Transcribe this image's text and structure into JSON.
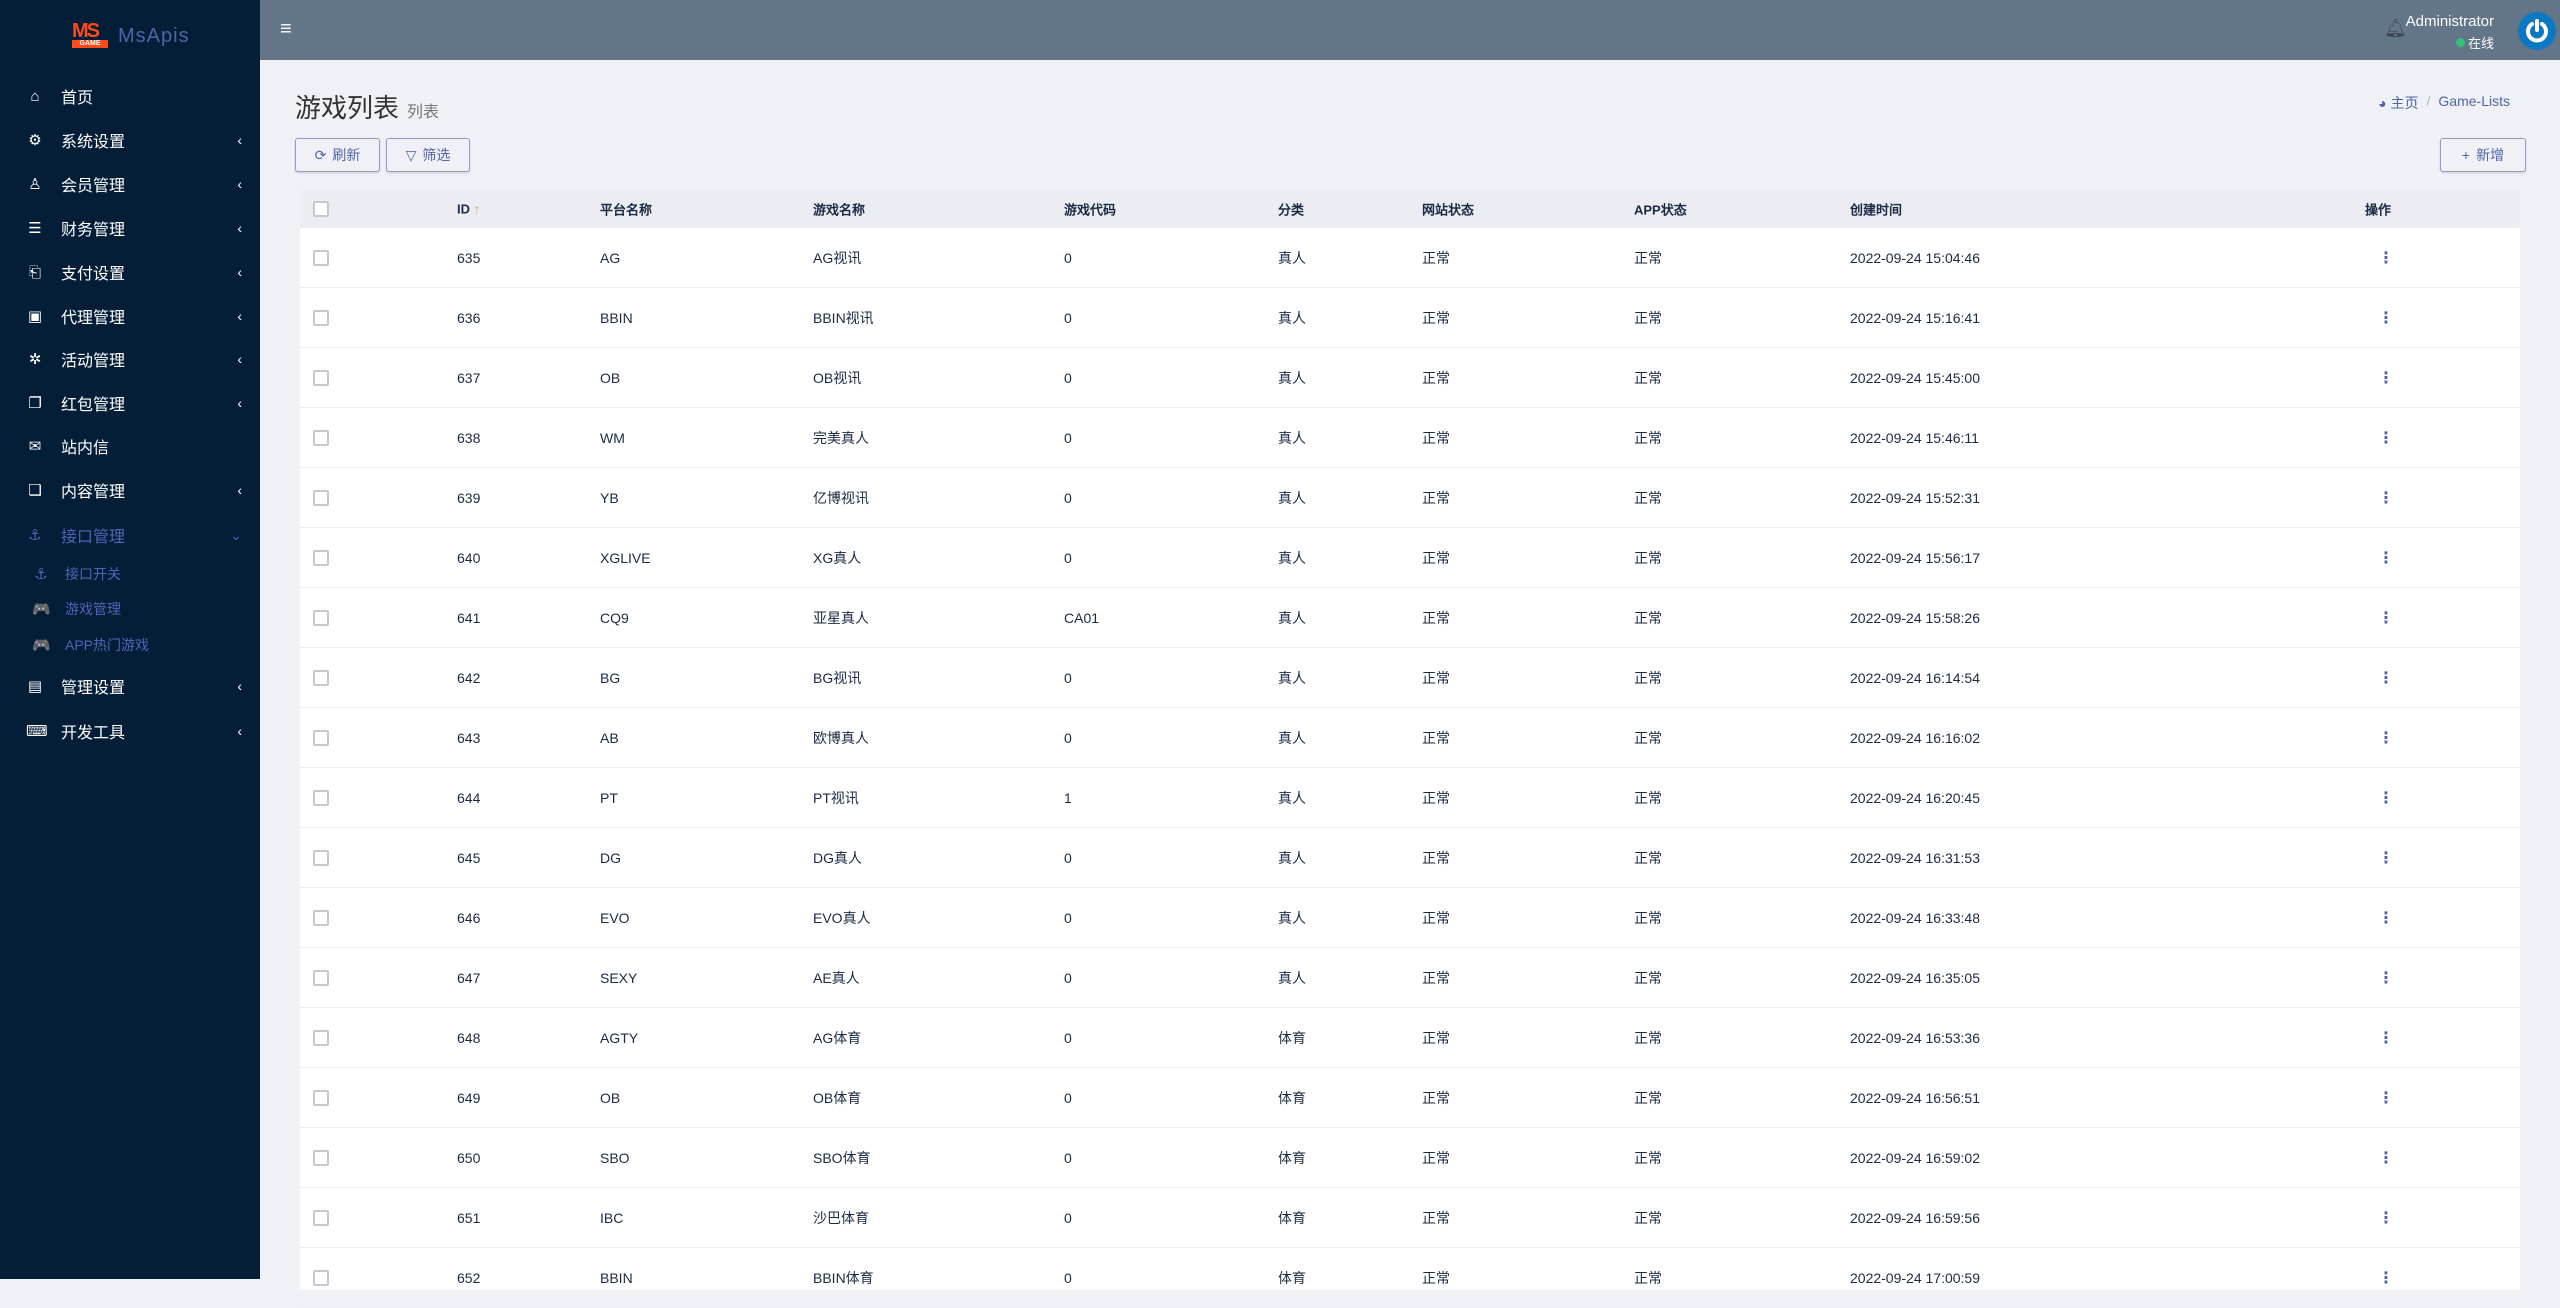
{
  "app": {
    "logo_mark": "MS",
    "logo_sub": "GAME",
    "name": "MsApis"
  },
  "sidebar": {
    "items": [
      {
        "label": "首页",
        "icon": "home-icon",
        "glyph": "⌂",
        "chevron": ""
      },
      {
        "label": "系统设置",
        "icon": "gears-icon",
        "glyph": "⚙",
        "chevron": "‹"
      },
      {
        "label": "会员管理",
        "icon": "user-icon",
        "glyph": "♙",
        "chevron": "‹"
      },
      {
        "label": "财务管理",
        "icon": "database-icon",
        "glyph": "☰",
        "chevron": "‹"
      },
      {
        "label": "支付设置",
        "icon": "bookmark-icon",
        "glyph": "⎗",
        "chevron": "‹"
      },
      {
        "label": "代理管理",
        "icon": "contact-card-icon",
        "glyph": "▣",
        "chevron": "‹"
      },
      {
        "label": "活动管理",
        "icon": "yelp-icon",
        "glyph": "✲",
        "chevron": "‹"
      },
      {
        "label": "红包管理",
        "icon": "window-restore-icon",
        "glyph": "❐",
        "chevron": "‹"
      },
      {
        "label": "站内信",
        "icon": "envelope-icon",
        "glyph": "✉",
        "chevron": ""
      },
      {
        "label": "内容管理",
        "icon": "copy-icon",
        "glyph": "❏",
        "chevron": "‹"
      },
      {
        "label": "接口管理",
        "icon": "anchor-icon",
        "glyph": "⚓",
        "chevron": "⌄"
      },
      {
        "label": "管理设置",
        "icon": "id-card-icon",
        "glyph": "▤",
        "chevron": "‹"
      },
      {
        "label": "开发工具",
        "icon": "keyboard-icon",
        "glyph": "⌨",
        "chevron": "‹"
      }
    ],
    "subitems": [
      {
        "label": "接口开关",
        "icon": "anchor-icon",
        "glyph": "⚓"
      },
      {
        "label": "游戏管理",
        "icon": "gamepad-icon",
        "glyph": "🎮"
      },
      {
        "label": "APP热门游戏",
        "icon": "gamepad-icon",
        "glyph": "🎮"
      }
    ]
  },
  "header": {
    "user": "Administrator",
    "status": "在线",
    "status_color": "#2ec27e"
  },
  "page": {
    "title": "游戏列表",
    "subtitle": "列表"
  },
  "breadcrumb": {
    "home": "主页",
    "current": "Game-Lists"
  },
  "toolbar": {
    "refresh": "刷新",
    "filter": "筛选",
    "add": "新增"
  },
  "table": {
    "columns": [
      "ID",
      "平台名称",
      "游戏名称",
      "游戏代码",
      "分类",
      "网站状态",
      "APP状态",
      "创建时间",
      "操作"
    ],
    "rows": [
      [
        "635",
        "AG",
        "AG视讯",
        "0",
        "真人",
        "正常",
        "正常",
        "2022-09-24 15:04:46"
      ],
      [
        "636",
        "BBIN",
        "BBIN视讯",
        "0",
        "真人",
        "正常",
        "正常",
        "2022-09-24 15:16:41"
      ],
      [
        "637",
        "OB",
        "OB视讯",
        "0",
        "真人",
        "正常",
        "正常",
        "2022-09-24 15:45:00"
      ],
      [
        "638",
        "WM",
        "完美真人",
        "0",
        "真人",
        "正常",
        "正常",
        "2022-09-24 15:46:11"
      ],
      [
        "639",
        "YB",
        "亿博视讯",
        "0",
        "真人",
        "正常",
        "正常",
        "2022-09-24 15:52:31"
      ],
      [
        "640",
        "XGLIVE",
        "XG真人",
        "0",
        "真人",
        "正常",
        "正常",
        "2022-09-24 15:56:17"
      ],
      [
        "641",
        "CQ9",
        "亚星真人",
        "CA01",
        "真人",
        "正常",
        "正常",
        "2022-09-24 15:58:26"
      ],
      [
        "642",
        "BG",
        "BG视讯",
        "0",
        "真人",
        "正常",
        "正常",
        "2022-09-24 16:14:54"
      ],
      [
        "643",
        "AB",
        "欧博真人",
        "0",
        "真人",
        "正常",
        "正常",
        "2022-09-24 16:16:02"
      ],
      [
        "644",
        "PT",
        "PT视讯",
        "1",
        "真人",
        "正常",
        "正常",
        "2022-09-24 16:20:45"
      ],
      [
        "645",
        "DG",
        "DG真人",
        "0",
        "真人",
        "正常",
        "正常",
        "2022-09-24 16:31:53"
      ],
      [
        "646",
        "EVO",
        "EVO真人",
        "0",
        "真人",
        "正常",
        "正常",
        "2022-09-24 16:33:48"
      ],
      [
        "647",
        "SEXY",
        "AE真人",
        "0",
        "真人",
        "正常",
        "正常",
        "2022-09-24 16:35:05"
      ],
      [
        "648",
        "AGTY",
        "AG体育",
        "0",
        "体育",
        "正常",
        "正常",
        "2022-09-24 16:53:36"
      ],
      [
        "649",
        "OB",
        "OB体育",
        "0",
        "体育",
        "正常",
        "正常",
        "2022-09-24 16:56:51"
      ],
      [
        "650",
        "SBO",
        "SBO体育",
        "0",
        "体育",
        "正常",
        "正常",
        "2022-09-24 16:59:02"
      ],
      [
        "651",
        "IBC",
        "沙巴体育",
        "0",
        "体育",
        "正常",
        "正常",
        "2022-09-24 16:59:56"
      ],
      [
        "652",
        "BBIN",
        "BBIN体育",
        "0",
        "体育",
        "正常",
        "正常",
        "2022-09-24 17:00:59"
      ]
    ]
  }
}
